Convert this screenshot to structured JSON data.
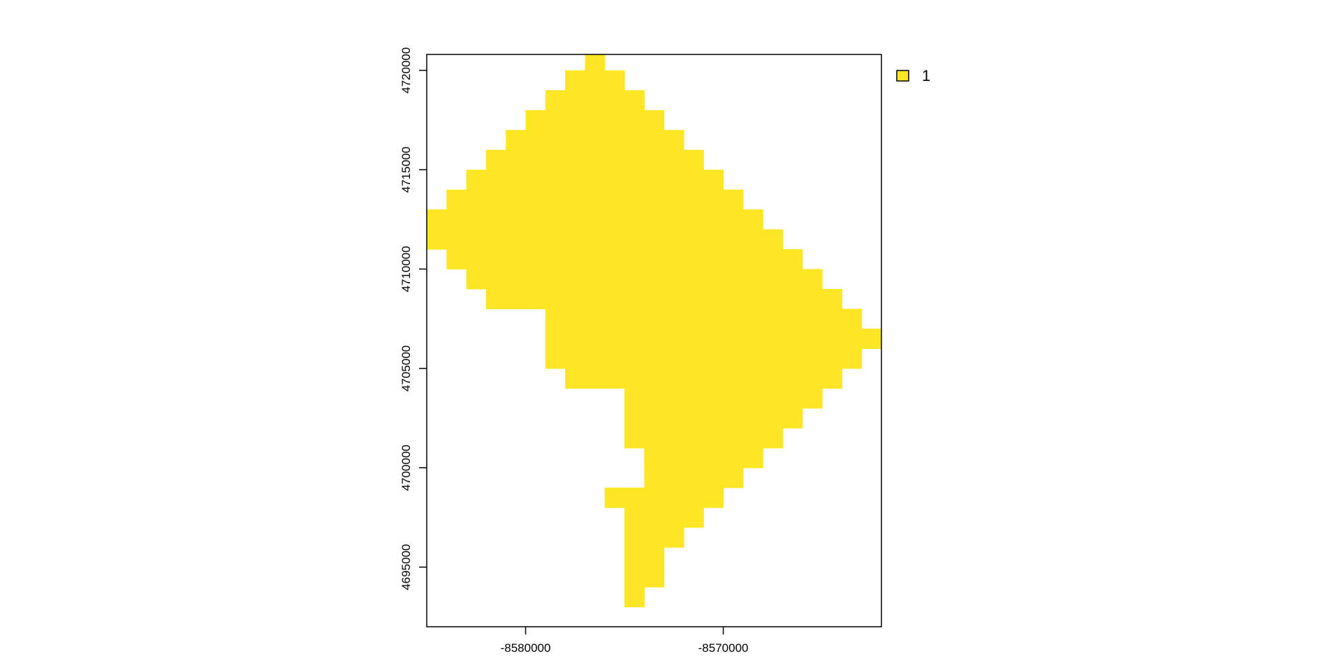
{
  "chart_data": {
    "type": "heatmap",
    "title": "",
    "xlabel": "",
    "ylabel": "",
    "xlim": [
      -8585000,
      -8562000
    ],
    "ylim": [
      4692000,
      4720800
    ],
    "cell_size": 1000,
    "x_ticks": [
      -8580000,
      -8570000
    ],
    "x_tick_labels": [
      "-8580000",
      "-8570000"
    ],
    "y_ticks": [
      4695000,
      4700000,
      4705000,
      4710000,
      4715000,
      4720000
    ],
    "y_tick_labels": [
      "4695000",
      "4700000",
      "4705000",
      "4710000",
      "4715000",
      "4720000"
    ],
    "grid": false,
    "legend_position": "top-right",
    "legend": [
      {
        "label": "1",
        "value": 1,
        "color": "#FDE725"
      }
    ],
    "raster_rows": [
      {
        "y": [
          4720000,
          4721000
        ],
        "x_ranges": [
          [
            -8577000,
            -8576000
          ]
        ]
      },
      {
        "y": [
          4719000,
          4720000
        ],
        "x_ranges": [
          [
            -8578000,
            -8575000
          ]
        ]
      },
      {
        "y": [
          4718000,
          4719000
        ],
        "x_ranges": [
          [
            -8579000,
            -8574000
          ]
        ]
      },
      {
        "y": [
          4717000,
          4718000
        ],
        "x_ranges": [
          [
            -8580000,
            -8573000
          ]
        ]
      },
      {
        "y": [
          4716000,
          4717000
        ],
        "x_ranges": [
          [
            -8581000,
            -8572000
          ]
        ]
      },
      {
        "y": [
          4715000,
          4716000
        ],
        "x_ranges": [
          [
            -8582000,
            -8571000
          ]
        ]
      },
      {
        "y": [
          4714000,
          4715000
        ],
        "x_ranges": [
          [
            -8583000,
            -8570000
          ]
        ]
      },
      {
        "y": [
          4713000,
          4714000
        ],
        "x_ranges": [
          [
            -8584000,
            -8569000
          ]
        ]
      },
      {
        "y": [
          4712000,
          4713000
        ],
        "x_ranges": [
          [
            -8585000,
            -8568000
          ]
        ]
      },
      {
        "y": [
          4711000,
          4712000
        ],
        "x_ranges": [
          [
            -8585000,
            -8567000
          ]
        ]
      },
      {
        "y": [
          4710000,
          4711000
        ],
        "x_ranges": [
          [
            -8584000,
            -8566000
          ]
        ]
      },
      {
        "y": [
          4709000,
          4710000
        ],
        "x_ranges": [
          [
            -8583000,
            -8565000
          ]
        ]
      },
      {
        "y": [
          4708000,
          4709000
        ],
        "x_ranges": [
          [
            -8582000,
            -8564000
          ]
        ]
      },
      {
        "y": [
          4707000,
          4708000
        ],
        "x_ranges": [
          [
            -8579000,
            -8563000
          ]
        ]
      },
      {
        "y": [
          4706000,
          4707000
        ],
        "x_ranges": [
          [
            -8579000,
            -8562000
          ]
        ]
      },
      {
        "y": [
          4705000,
          4706000
        ],
        "x_ranges": [
          [
            -8579000,
            -8563000
          ]
        ]
      },
      {
        "y": [
          4704000,
          4705000
        ],
        "x_ranges": [
          [
            -8578000,
            -8564000
          ]
        ]
      },
      {
        "y": [
          4703000,
          4704000
        ],
        "x_ranges": [
          [
            -8575000,
            -8565000
          ]
        ]
      },
      {
        "y": [
          4702000,
          4703000
        ],
        "x_ranges": [
          [
            -8575000,
            -8566000
          ]
        ]
      },
      {
        "y": [
          4701000,
          4702000
        ],
        "x_ranges": [
          [
            -8575000,
            -8567000
          ]
        ]
      },
      {
        "y": [
          4700000,
          4701000
        ],
        "x_ranges": [
          [
            -8574000,
            -8568000
          ]
        ]
      },
      {
        "y": [
          4699000,
          4700000
        ],
        "x_ranges": [
          [
            -8574000,
            -8569000
          ]
        ]
      },
      {
        "y": [
          4698000,
          4699000
        ],
        "x_ranges": [
          [
            -8576000,
            -8570000
          ]
        ]
      },
      {
        "y": [
          4697000,
          4698000
        ],
        "x_ranges": [
          [
            -8575000,
            -8571000
          ]
        ]
      },
      {
        "y": [
          4696000,
          4697000
        ],
        "x_ranges": [
          [
            -8575000,
            -8572000
          ]
        ]
      },
      {
        "y": [
          4695000,
          4696000
        ],
        "x_ranges": [
          [
            -8575000,
            -8573000
          ]
        ]
      },
      {
        "y": [
          4694000,
          4695000
        ],
        "x_ranges": [
          [
            -8575000,
            -8573000
          ]
        ]
      },
      {
        "y": [
          4693000,
          4694000
        ],
        "x_ranges": [
          [
            -8575000,
            -8574000
          ]
        ]
      }
    ]
  }
}
